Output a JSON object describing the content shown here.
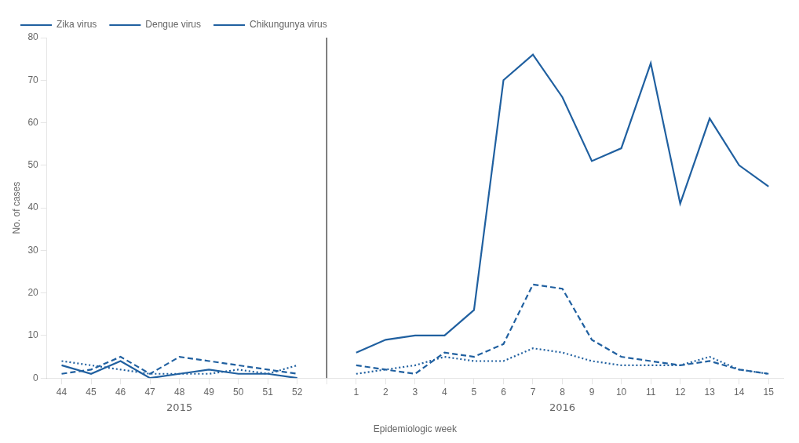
{
  "chart_data": {
    "type": "line",
    "xlabel": "Epidemiologic week",
    "ylabel": "No. of cases",
    "categories": [
      "44",
      "45",
      "46",
      "47",
      "48",
      "49",
      "50",
      "51",
      "52",
      null,
      "1",
      "2",
      "3",
      "4",
      "5",
      "6",
      "7",
      "8",
      "9",
      "10",
      "11",
      "12",
      "13",
      "14",
      "15"
    ],
    "series": [
      {
        "name": "Zika virus",
        "color": "#2060A0",
        "line_style": "solid",
        "values": [
          3,
          1,
          4,
          0,
          1,
          2,
          1,
          1,
          0,
          null,
          6,
          9,
          10,
          10,
          16,
          70,
          76,
          66,
          51,
          54,
          74,
          41,
          61,
          50,
          45
        ]
      },
      {
        "name": "Dengue virus",
        "color": "#2060A0",
        "line_style": "dashed",
        "values": [
          1,
          2,
          5,
          1,
          5,
          4,
          3,
          2,
          1,
          null,
          3,
          2,
          1,
          6,
          5,
          8,
          22,
          21,
          9,
          5,
          4,
          3,
          4,
          2,
          1
        ]
      },
      {
        "name": "Chikungunya virus",
        "color": "#2060A0",
        "line_style": "dotted",
        "values": [
          4,
          3,
          2,
          1,
          1,
          1,
          2,
          1,
          3,
          null,
          1,
          2,
          3,
          5,
          4,
          4,
          7,
          6,
          4,
          3,
          3,
          3,
          5,
          2,
          1
        ]
      }
    ],
    "annotations": [
      "2015",
      "2016"
    ],
    "ylim": [
      0,
      80
    ],
    "yticks": [
      0,
      10,
      20,
      30,
      40,
      50,
      60,
      70,
      80
    ],
    "grid": false,
    "legend": "upper left"
  }
}
